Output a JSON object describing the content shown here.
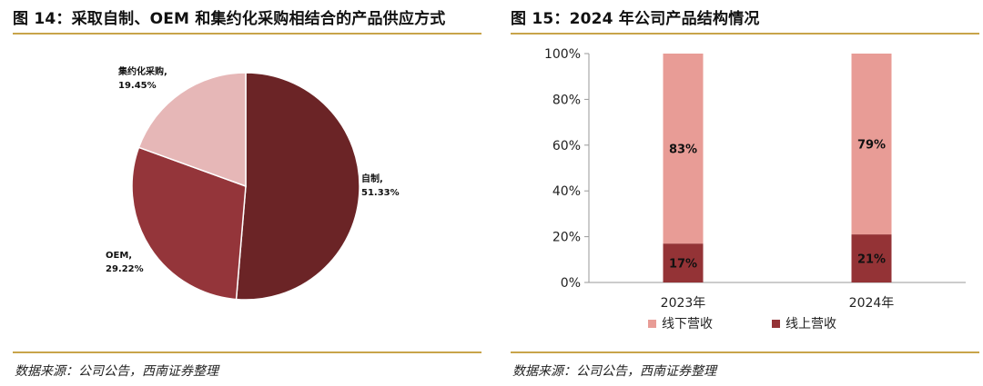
{
  "left": {
    "title": "图 14：采取自制、OEM 和集约化采购相结合的产品供应方式",
    "source": "数据来源：公司公告，西南证券整理"
  },
  "right": {
    "title": "图 15：2024 年公司产品结构情况",
    "source": "数据来源：公司公告，西南证券整理"
  },
  "chart_data": [
    {
      "type": "pie",
      "title": "采取自制、OEM 和集约化采购相结合的产品供应方式",
      "slices": [
        {
          "label": "自制,",
          "value": 51.33,
          "value_label": "51.33%",
          "color": "#6b2426"
        },
        {
          "label": "OEM,",
          "value": 29.22,
          "value_label": "29.22%",
          "color": "#94353a"
        },
        {
          "label": "集约化采购,",
          "value": 19.45,
          "value_label": "19.45%",
          "color": "#e6b7b7"
        }
      ]
    },
    {
      "type": "bar",
      "stacked": true,
      "title": "2024 年公司产品结构情况",
      "categories": [
        "2023年",
        "2024年"
      ],
      "series": [
        {
          "name": "线上营收",
          "values": [
            17,
            21
          ],
          "labels": [
            "17%",
            "21%"
          ],
          "color": "#943336"
        },
        {
          "name": "线下营收",
          "values": [
            83,
            79
          ],
          "labels": [
            "83%",
            "79%"
          ],
          "color": "#e89c96"
        }
      ],
      "yticks": [
        "0%",
        "20%",
        "40%",
        "60%",
        "80%",
        "100%"
      ],
      "ylim": [
        0,
        100
      ],
      "legend": [
        "线下营收",
        "线上营收"
      ]
    }
  ]
}
